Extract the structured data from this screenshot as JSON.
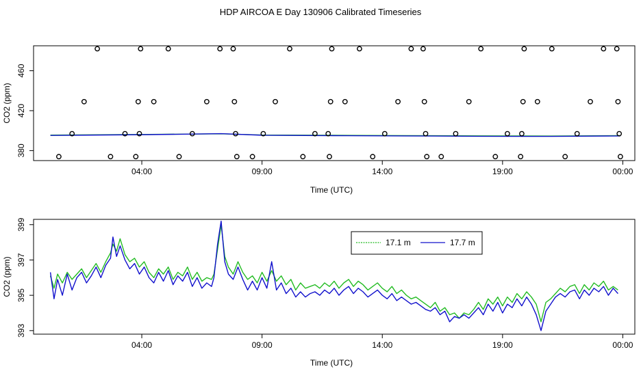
{
  "page": {
    "title": "HDP AIRCOA E  Day 130906  Calibrated Timeseries"
  },
  "colors": {
    "series_17_1": "#22bb22",
    "series_17_7": "#1010cc",
    "axis": "#000000",
    "points": "#000000"
  },
  "chart_data": [
    {
      "type": "scatter",
      "title": "",
      "xlabel": "Time (UTC)",
      "ylabel": "CO2 (ppm)",
      "xlim_hours": [
        -0.5,
        24.5
      ],
      "ylim": [
        370,
        485
      ],
      "xticks": {
        "values": [
          4,
          9,
          14,
          19,
          24
        ],
        "labels": [
          "04:00",
          "09:00",
          "14:00",
          "19:00",
          "00:00"
        ]
      },
      "yticks": {
        "values": [
          380,
          420,
          460
        ],
        "labels": [
          "380",
          "420",
          "460"
        ]
      },
      "calibration_points": [
        {
          "x": 0.55,
          "y": 374
        },
        {
          "x": 1.1,
          "y": 397
        },
        {
          "x": 1.6,
          "y": 429
        },
        {
          "x": 2.15,
          "y": 482
        },
        {
          "x": 2.7,
          "y": 374
        },
        {
          "x": 3.3,
          "y": 397
        },
        {
          "x": 3.75,
          "y": 374
        },
        {
          "x": 3.85,
          "y": 429
        },
        {
          "x": 3.9,
          "y": 397
        },
        {
          "x": 3.95,
          "y": 482
        },
        {
          "x": 4.5,
          "y": 429
        },
        {
          "x": 5.1,
          "y": 482
        },
        {
          "x": 5.55,
          "y": 374
        },
        {
          "x": 6.1,
          "y": 397
        },
        {
          "x": 6.7,
          "y": 429
        },
        {
          "x": 7.25,
          "y": 482
        },
        {
          "x": 7.8,
          "y": 482
        },
        {
          "x": 7.85,
          "y": 429
        },
        {
          "x": 7.9,
          "y": 397
        },
        {
          "x": 7.95,
          "y": 374
        },
        {
          "x": 8.6,
          "y": 374
        },
        {
          "x": 9.05,
          "y": 397
        },
        {
          "x": 9.55,
          "y": 429
        },
        {
          "x": 10.15,
          "y": 482
        },
        {
          "x": 10.7,
          "y": 374
        },
        {
          "x": 11.2,
          "y": 397
        },
        {
          "x": 11.75,
          "y": 397
        },
        {
          "x": 11.8,
          "y": 374
        },
        {
          "x": 11.85,
          "y": 429
        },
        {
          "x": 11.9,
          "y": 482
        },
        {
          "x": 12.45,
          "y": 429
        },
        {
          "x": 13.05,
          "y": 482
        },
        {
          "x": 13.6,
          "y": 374
        },
        {
          "x": 14.1,
          "y": 397
        },
        {
          "x": 14.65,
          "y": 429
        },
        {
          "x": 15.2,
          "y": 482
        },
        {
          "x": 15.7,
          "y": 482
        },
        {
          "x": 15.75,
          "y": 429
        },
        {
          "x": 15.8,
          "y": 397
        },
        {
          "x": 15.85,
          "y": 374
        },
        {
          "x": 16.45,
          "y": 374
        },
        {
          "x": 17.05,
          "y": 397
        },
        {
          "x": 17.6,
          "y": 429
        },
        {
          "x": 18.1,
          "y": 482
        },
        {
          "x": 18.7,
          "y": 374
        },
        {
          "x": 19.2,
          "y": 397
        },
        {
          "x": 19.75,
          "y": 374
        },
        {
          "x": 19.8,
          "y": 397
        },
        {
          "x": 19.85,
          "y": 429
        },
        {
          "x": 19.9,
          "y": 482
        },
        {
          "x": 20.45,
          "y": 429
        },
        {
          "x": 21.05,
          "y": 482
        },
        {
          "x": 21.6,
          "y": 374
        },
        {
          "x": 22.1,
          "y": 397
        },
        {
          "x": 22.65,
          "y": 429
        },
        {
          "x": 23.2,
          "y": 482
        },
        {
          "x": 23.75,
          "y": 482
        },
        {
          "x": 23.8,
          "y": 429
        },
        {
          "x": 23.85,
          "y": 397
        },
        {
          "x": 23.9,
          "y": 374
        }
      ],
      "series": [
        {
          "color": "#22bb22",
          "x": [
            0.2,
            4.3,
            7.3,
            9.0,
            12.0,
            15.0,
            18.0,
            21.0,
            23.9
          ],
          "y": [
            395.5,
            396.2,
            396.8,
            395.6,
            395.3,
            395.0,
            394.8,
            394.6,
            395.0
          ]
        },
        {
          "color": "#1010cc",
          "x": [
            0.2,
            4.3,
            7.3,
            9.0,
            12.0,
            15.0,
            18.0,
            21.0,
            23.9
          ],
          "y": [
            395.2,
            396.0,
            397.0,
            395.4,
            395.0,
            394.7,
            394.4,
            394.2,
            394.7
          ]
        }
      ]
    },
    {
      "type": "line",
      "title": "",
      "xlabel": "Time (UTC)",
      "ylabel": "CO2 (ppm)",
      "xlim_hours": [
        -0.5,
        24.5
      ],
      "ylim": [
        392.8,
        399.3
      ],
      "xticks": {
        "values": [
          4,
          9,
          14,
          19,
          24
        ],
        "labels": [
          "04:00",
          "09:00",
          "14:00",
          "19:00",
          "00:00"
        ]
      },
      "yticks": {
        "values": [
          393,
          395,
          397,
          399
        ],
        "labels": [
          "393",
          "395",
          "397",
          "399"
        ]
      },
      "legend": {
        "position": "top-center",
        "entries": [
          {
            "label": "17.1 m",
            "color": "#22bb22"
          },
          {
            "label": "17.7 m",
            "color": "#1010cc"
          }
        ]
      },
      "series": [
        {
          "name": "17.1 m",
          "color": "#22bb22",
          "x": [
            0.2,
            0.35,
            0.5,
            0.7,
            0.9,
            1.1,
            1.3,
            1.5,
            1.7,
            1.9,
            2.1,
            2.3,
            2.5,
            2.7,
            2.8,
            2.95,
            3.1,
            3.3,
            3.5,
            3.7,
            3.9,
            4.1,
            4.3,
            4.5,
            4.7,
            4.9,
            5.1,
            5.3,
            5.5,
            5.7,
            5.9,
            6.1,
            6.3,
            6.5,
            6.7,
            6.9,
            7.0,
            7.15,
            7.3,
            7.45,
            7.6,
            7.8,
            8.0,
            8.2,
            8.4,
            8.6,
            8.8,
            9.0,
            9.2,
            9.4,
            9.6,
            9.8,
            10.0,
            10.2,
            10.4,
            10.6,
            10.8,
            11.0,
            11.2,
            11.4,
            11.6,
            11.8,
            12.0,
            12.2,
            12.4,
            12.6,
            12.8,
            13.0,
            13.2,
            13.4,
            13.6,
            13.8,
            14.0,
            14.2,
            14.4,
            14.6,
            14.8,
            15.0,
            15.2,
            15.4,
            15.6,
            15.8,
            16.0,
            16.2,
            16.4,
            16.6,
            16.8,
            17.0,
            17.2,
            17.4,
            17.6,
            17.8,
            18.0,
            18.2,
            18.4,
            18.6,
            18.8,
            19.0,
            19.2,
            19.4,
            19.6,
            19.8,
            20.0,
            20.2,
            20.4,
            20.6,
            20.8,
            21.0,
            21.2,
            21.4,
            21.6,
            21.8,
            22.0,
            22.2,
            22.4,
            22.6,
            22.8,
            23.0,
            23.2,
            23.4,
            23.6,
            23.8
          ],
          "y": [
            396.1,
            395.4,
            396.2,
            395.7,
            396.3,
            395.9,
            396.2,
            396.5,
            396.0,
            396.4,
            396.8,
            396.3,
            396.9,
            397.4,
            397.9,
            397.5,
            398.2,
            397.3,
            396.9,
            397.1,
            396.6,
            396.9,
            396.3,
            396.0,
            396.5,
            396.2,
            396.6,
            395.9,
            396.3,
            396.1,
            396.6,
            395.9,
            396.3,
            395.8,
            396.0,
            395.9,
            396.2,
            397.6,
            399.0,
            397.2,
            396.6,
            396.2,
            396.9,
            396.3,
            395.9,
            396.1,
            395.7,
            396.3,
            395.8,
            396.4,
            395.8,
            396.1,
            395.6,
            395.9,
            395.3,
            395.7,
            395.4,
            395.5,
            395.6,
            395.4,
            395.7,
            395.5,
            395.8,
            395.4,
            395.7,
            395.9,
            395.5,
            395.8,
            395.6,
            395.3,
            395.5,
            395.7,
            395.4,
            395.2,
            395.5,
            395.1,
            395.3,
            395.0,
            394.8,
            394.9,
            394.7,
            394.5,
            394.3,
            394.6,
            394.1,
            394.3,
            393.9,
            394.0,
            393.7,
            394.0,
            393.9,
            394.2,
            394.6,
            394.2,
            394.8,
            394.5,
            394.9,
            394.4,
            394.9,
            394.6,
            395.1,
            394.8,
            395.2,
            394.9,
            394.5,
            393.5,
            394.6,
            394.8,
            395.1,
            395.4,
            395.2,
            395.5,
            395.6,
            395.1,
            395.6,
            395.3,
            395.7,
            395.5,
            395.8,
            395.3,
            395.5,
            395.3
          ]
        },
        {
          "name": "17.7 m",
          "color": "#1010cc",
          "x": [
            0.2,
            0.35,
            0.5,
            0.7,
            0.9,
            1.1,
            1.3,
            1.5,
            1.7,
            1.9,
            2.1,
            2.3,
            2.5,
            2.7,
            2.8,
            2.95,
            3.1,
            3.3,
            3.5,
            3.7,
            3.9,
            4.1,
            4.3,
            4.5,
            4.7,
            4.9,
            5.1,
            5.3,
            5.5,
            5.7,
            5.9,
            6.1,
            6.3,
            6.5,
            6.7,
            6.9,
            7.0,
            7.15,
            7.3,
            7.45,
            7.6,
            7.8,
            8.0,
            8.2,
            8.4,
            8.6,
            8.8,
            9.0,
            9.2,
            9.4,
            9.6,
            9.8,
            10.0,
            10.2,
            10.4,
            10.6,
            10.8,
            11.0,
            11.2,
            11.4,
            11.6,
            11.8,
            12.0,
            12.2,
            12.4,
            12.6,
            12.8,
            13.0,
            13.2,
            13.4,
            13.6,
            13.8,
            14.0,
            14.2,
            14.4,
            14.6,
            14.8,
            15.0,
            15.2,
            15.4,
            15.6,
            15.8,
            16.0,
            16.2,
            16.4,
            16.6,
            16.8,
            17.0,
            17.2,
            17.4,
            17.6,
            17.8,
            18.0,
            18.2,
            18.4,
            18.6,
            18.8,
            19.0,
            19.2,
            19.4,
            19.6,
            19.8,
            20.0,
            20.2,
            20.4,
            20.6,
            20.8,
            21.0,
            21.2,
            21.4,
            21.6,
            21.8,
            22.0,
            22.2,
            22.4,
            22.6,
            22.8,
            23.0,
            23.2,
            23.4,
            23.6,
            23.8
          ],
          "y": [
            396.3,
            394.8,
            395.9,
            395.0,
            396.2,
            395.3,
            396.0,
            396.3,
            395.7,
            396.1,
            396.6,
            396.0,
            396.7,
            397.1,
            398.3,
            397.2,
            397.8,
            397.0,
            396.5,
            396.8,
            396.2,
            396.6,
            396.0,
            395.7,
            396.3,
            395.8,
            396.4,
            395.6,
            396.1,
            395.8,
            396.3,
            395.5,
            396.0,
            395.4,
            395.7,
            395.5,
            396.0,
            397.9,
            399.2,
            396.9,
            396.2,
            395.9,
            396.6,
            395.9,
            395.3,
            395.8,
            395.3,
            396.0,
            395.4,
            396.9,
            395.3,
            395.7,
            395.1,
            395.4,
            394.9,
            395.2,
            394.9,
            395.1,
            395.2,
            395.0,
            395.3,
            395.1,
            395.4,
            395.0,
            395.3,
            395.5,
            395.1,
            395.4,
            395.2,
            394.9,
            395.1,
            395.3,
            395.0,
            394.8,
            395.1,
            394.7,
            394.9,
            394.7,
            394.5,
            394.6,
            394.4,
            394.2,
            394.1,
            394.3,
            393.9,
            394.1,
            393.5,
            393.8,
            393.7,
            393.9,
            393.7,
            394.0,
            394.3,
            393.9,
            394.5,
            394.1,
            394.6,
            394.0,
            394.5,
            394.3,
            394.8,
            394.4,
            394.9,
            394.5,
            393.9,
            393.0,
            394.1,
            394.5,
            394.9,
            395.1,
            394.9,
            395.2,
            395.3,
            394.8,
            395.3,
            395.0,
            395.4,
            395.2,
            395.5,
            395.0,
            395.4,
            395.1
          ]
        }
      ]
    }
  ]
}
